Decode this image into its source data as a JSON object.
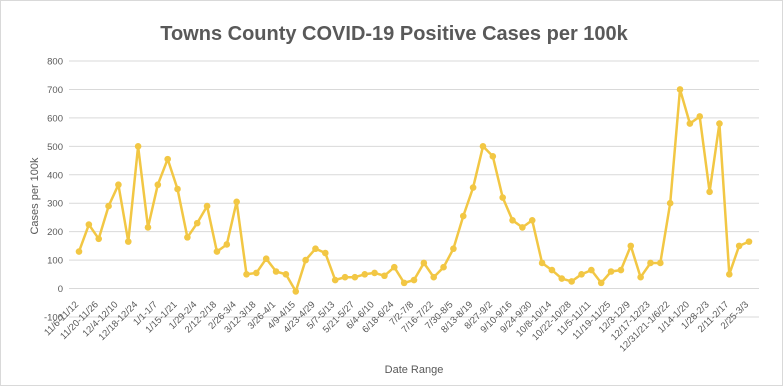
{
  "chart_data": {
    "type": "line",
    "title": "Towns County COVID-19 Positive Cases per 100k",
    "xlabel": "Date Range",
    "ylabel": "Cases per 100k",
    "ylim": [
      -100,
      800
    ],
    "yticks": [
      -100,
      0,
      100,
      200,
      300,
      400,
      500,
      600,
      700,
      800
    ],
    "grid": true,
    "legend": "none",
    "color": "#f2c744",
    "x_tick_labels": [
      "11/6-11/12",
      "11/20-11/26",
      "12/4-12/10",
      "12/18-12/24",
      "1/1-1/7",
      "1/15-1/21",
      "1/29-2/4",
      "2/12-2/18",
      "2/26-3/4",
      "3/12-3/18",
      "3/26-4/1",
      "4/9-4/15",
      "4/23-4/29",
      "5/7-5/13",
      "5/21-5/27",
      "6/4-6/10",
      "6/18-6/24",
      "7/2-7/8",
      "7/16-7/22",
      "7/30-8/5",
      "8/13-8/19",
      "8/27-9/2",
      "9/10-9/16",
      "9/24-9/30",
      "10/8-10/14",
      "10/22-10/28",
      "11/5-11/11",
      "11/19-11/25",
      "12/3-12/9",
      "12/17-12/23",
      "12/31/21-1/6/22",
      "1/14-1/20",
      "1/28-2/3",
      "2/11-2/17",
      "2/25-3/3"
    ],
    "series": [
      {
        "values": [
          130,
          225,
          175,
          290,
          365,
          165,
          500,
          215,
          365,
          455,
          350,
          180,
          230,
          290,
          130,
          155,
          305,
          50,
          55,
          105,
          60,
          50,
          -10,
          100,
          140,
          125,
          30,
          40,
          40,
          50,
          55,
          45,
          75,
          20,
          30,
          90,
          40,
          75,
          140,
          255,
          355,
          500,
          465,
          320,
          240,
          215,
          240,
          90,
          65,
          35,
          25,
          50,
          65,
          20,
          60,
          65,
          150,
          40,
          90,
          90,
          300,
          700,
          580,
          605,
          340,
          580,
          50,
          150,
          165
        ]
      }
    ]
  }
}
